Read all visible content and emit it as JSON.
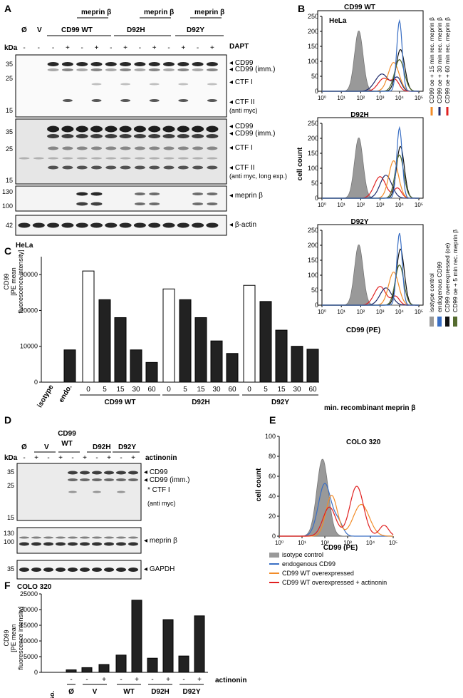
{
  "panel_labels": {
    "a": "A",
    "b": "B",
    "c": "C",
    "d": "D",
    "e": "E",
    "f": "F"
  },
  "panel_a": {
    "group_lanes_top": [
      "meprin β",
      "meprin β",
      "meprin β"
    ],
    "lanes_main": [
      "Ø",
      "V",
      "CD99 WT",
      "D92H",
      "D92Y"
    ],
    "dapt_label": "DAPT",
    "dapt_signs": [
      "-",
      "-",
      "-",
      "+",
      "-",
      "+",
      "-",
      "+",
      "-",
      "+",
      "-",
      "+",
      "-",
      "+"
    ],
    "kda": "kDa",
    "blot1_markers": [
      "35",
      "25",
      "15"
    ],
    "blot1_labels": [
      "CD99",
      "CD99 (imm.)",
      "CTF I",
      "CTF II"
    ],
    "blot1_note": "(anti myc)",
    "blot2_markers": [
      "35",
      "25",
      "15"
    ],
    "blot2_labels": [
      "CD99",
      "CD99 (imm.)",
      "CTF I",
      "CTF II"
    ],
    "blot2_note": "(anti myc, long exp.)",
    "blot3_markers": [
      "130",
      "100"
    ],
    "blot3_label": "meprin β",
    "blot4_marker": "42",
    "blot4_label": "β-actin",
    "cell_line": "HeLa"
  },
  "panel_b": {
    "titles": [
      "CD99 WT",
      "D92H",
      "D92Y"
    ],
    "cell_line": "HeLa",
    "y_ticks": [
      "0",
      "50",
      "100",
      "150",
      "200",
      "250"
    ],
    "x_ticks": [
      "10⁰",
      "10¹",
      "10²",
      "10³",
      "10⁴",
      "10⁵"
    ],
    "ylabel": "cell count",
    "xlabel": "CD99 (PE)",
    "legend": [
      {
        "label": "isotype control",
        "color": "#999999"
      },
      {
        "label": "endogenous CD99",
        "color": "#3a6fc4"
      },
      {
        "label": "CD99 overexpressed (oe)",
        "color": "#111111"
      },
      {
        "label": "CD99 oe + 5 min rec. meprin β",
        "color": "#556b2f"
      },
      {
        "label": "CD99 oe + 15 min rec. meprin β",
        "color": "#f28c28"
      },
      {
        "label": "CD99 oe + 30 min rec. meprin β",
        "color": "#1f2a6b"
      },
      {
        "label": "CD99 oe + 60 min rec. meprin β",
        "color": "#e02020"
      }
    ]
  },
  "chart_data": [
    {
      "type": "bar",
      "title": "",
      "ylabel": "CD99 [PE mean fluorescence intensity]",
      "xlabel": "min. recombinant meprin β",
      "ylim": [
        0,
        35000
      ],
      "y_ticks": [
        "0",
        "10000",
        "20000",
        "30000"
      ],
      "categories": [
        "isotype",
        "endo.",
        "0",
        "5",
        "15",
        "30",
        "60",
        "0",
        "5",
        "15",
        "30",
        "60",
        "0",
        "5",
        "15",
        "30",
        "60"
      ],
      "groups": [
        "CD99 WT",
        "D92H",
        "D92Y"
      ],
      "values": [
        0,
        9000,
        31000,
        23000,
        18000,
        9000,
        5500,
        26000,
        23000,
        18000,
        11500,
        8000,
        27000,
        22500,
        14500,
        10000,
        9200
      ],
      "open_bars": [
        2,
        7,
        12
      ]
    },
    {
      "type": "bar",
      "title": "",
      "ylabel": "CD99 [PE mean fluorescence intensity]",
      "xlabel": "actinonin",
      "ylim": [
        0,
        25000
      ],
      "y_ticks": [
        "0",
        "5000",
        "10000",
        "15000",
        "20000",
        "25000"
      ],
      "sign_row": [
        "-",
        "-",
        "+",
        "-",
        "+",
        "-",
        "+",
        "-",
        "+"
      ],
      "categories": [
        "iso.",
        "Ø",
        "V",
        "V",
        "WT",
        "WT",
        "D92H",
        "D92H",
        "D92Y",
        "D92Y"
      ],
      "group_labels": [
        "iso.",
        "Ø",
        "V",
        "WT",
        "D92H",
        "D92Y"
      ],
      "values": [
        0,
        800,
        1500,
        2500,
        5500,
        23000,
        4500,
        16800,
        5200,
        18000
      ]
    }
  ],
  "panel_d": {
    "lanes_main": [
      "Ø",
      "V",
      "CD99 WT",
      "D92H",
      "D92Y"
    ],
    "signs": [
      "-",
      "+",
      "-",
      "+",
      "-",
      "+",
      "-",
      "+",
      "-",
      "+"
    ],
    "treat_label": "actinonin",
    "kda": "kDa",
    "blot1_markers": [
      "35",
      "25",
      "15"
    ],
    "blot1_labels": [
      "CD99",
      "CD99 (imm.)",
      "* CTF I"
    ],
    "blot1_note": "(anti myc)",
    "blot2_markers": [
      "130",
      "100"
    ],
    "blot2_label": "meprin β",
    "blot3_marker": "35",
    "blot3_label": "GAPDH",
    "cell_line": "COLO 320"
  },
  "panel_e": {
    "title": "COLO 320",
    "y_ticks": [
      "0",
      "20",
      "40",
      "60",
      "80",
      "100"
    ],
    "x_ticks": [
      "10⁰",
      "10¹",
      "10²",
      "10³",
      "10⁴",
      "10⁵"
    ],
    "ylabel": "cell count",
    "xlabel": "CD99 (PE)",
    "legend": [
      {
        "label": "isotype control",
        "color": "#999999"
      },
      {
        "label": "endogenous CD99",
        "color": "#3a6fc4"
      },
      {
        "label": "CD99 WT overexpressed",
        "color": "#f28c28"
      },
      {
        "label": "CD99 WT overexpressed + actinonin",
        "color": "#e02020"
      }
    ]
  }
}
